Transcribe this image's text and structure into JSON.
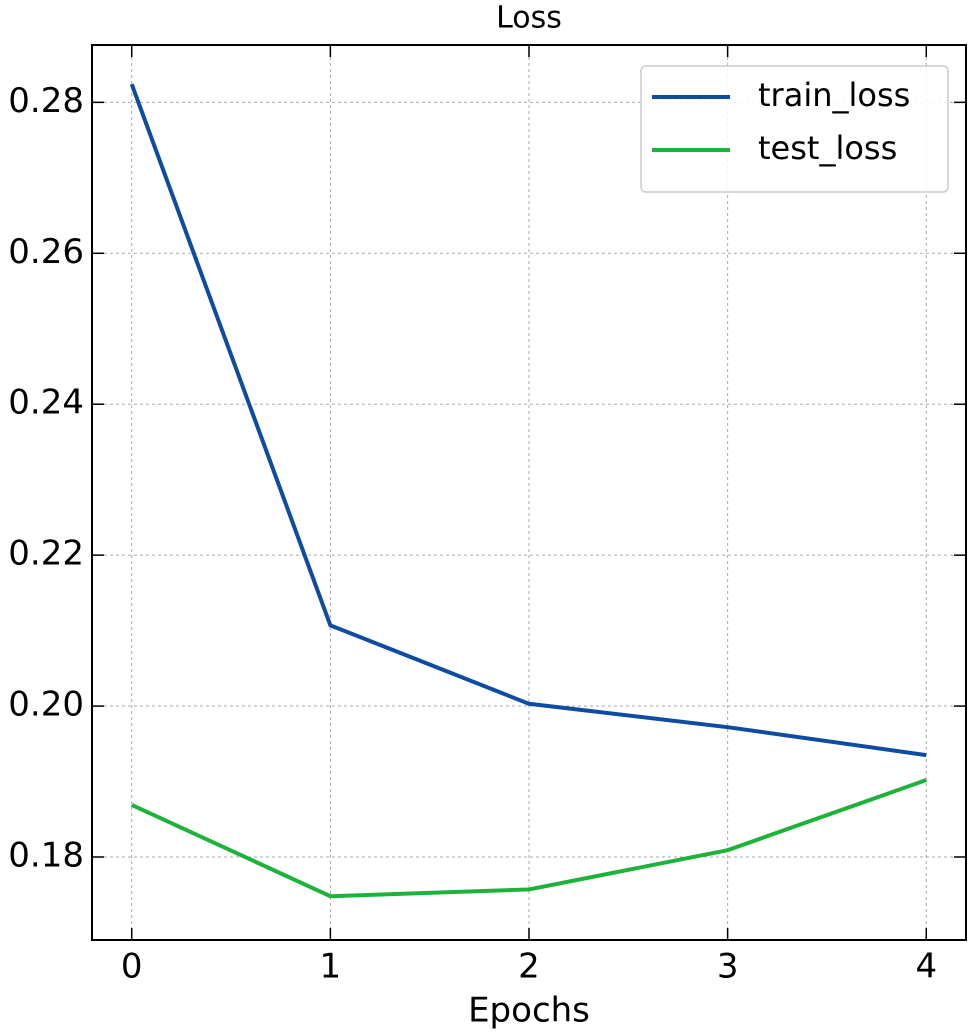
{
  "chart_data": {
    "type": "line",
    "title": "Loss",
    "x_label": "Epochs",
    "x": [
      0,
      1,
      2,
      3,
      4
    ],
    "series": [
      {
        "name": "train_loss",
        "color": "#0d4ca0",
        "values": [
          0.2824,
          0.2107,
          0.2003,
          0.1972,
          0.1935
        ]
      },
      {
        "name": "test_loss",
        "color": "#1db33a",
        "values": [
          0.1869,
          0.1748,
          0.1757,
          0.1809,
          0.1902
        ]
      }
    ],
    "xlim": [
      -0.2,
      4.2
    ],
    "xticks": [
      0,
      1,
      2,
      3,
      4
    ],
    "ylim": [
      0.169,
      0.2876
    ],
    "yticks": [
      {
        "value": 0.18,
        "label": "0.18"
      },
      {
        "value": 0.2,
        "label": "0.20"
      },
      {
        "value": 0.22,
        "label": "0.22"
      },
      {
        "value": 0.24,
        "label": "0.24"
      },
      {
        "value": 0.26,
        "label": "0.26"
      },
      {
        "value": 0.28,
        "label": "0.28"
      }
    ],
    "grid": true,
    "legend": "upper right"
  }
}
